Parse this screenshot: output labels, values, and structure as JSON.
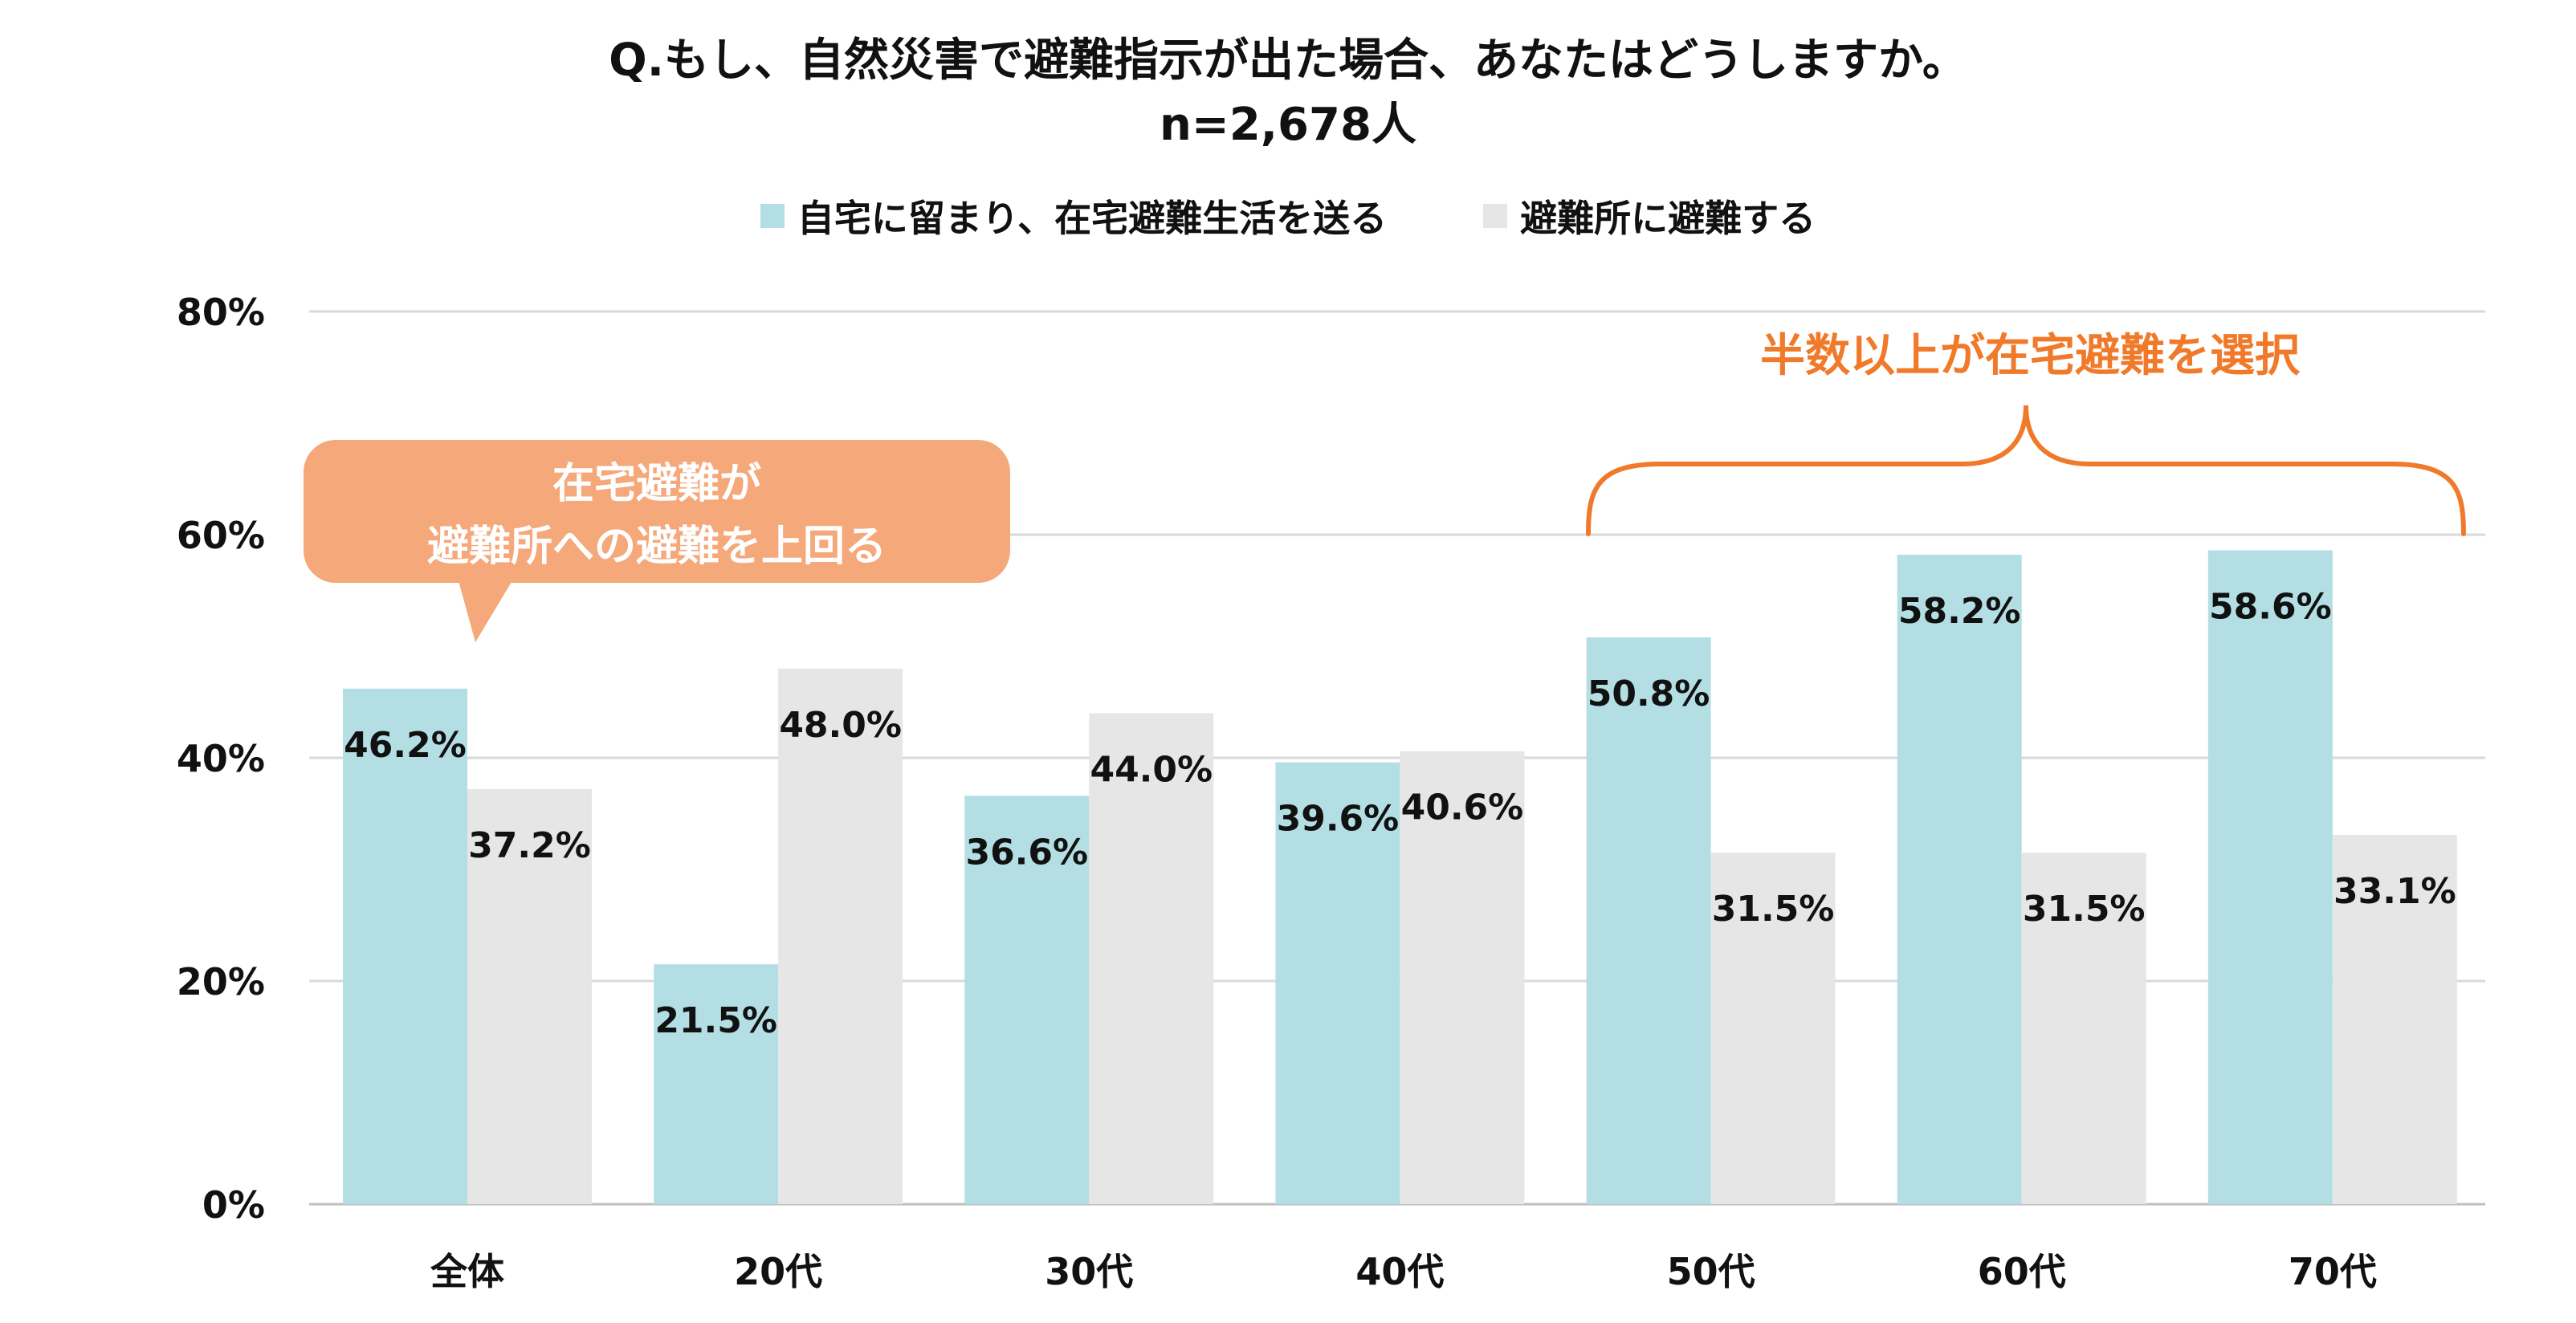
{
  "title": "Q.もし、自然災害で避難指示が出た場合、あなたはどうしますか。",
  "subtitle": "n=2,678人",
  "colors": {
    "series1": "#b3dfe4",
    "series2": "#e6e6e6",
    "accent": "#f07a2a",
    "callout": "#f5a87a",
    "grid": "#d9d9d9"
  },
  "chart_data": {
    "type": "bar",
    "categories": [
      "全体",
      "20代",
      "30代",
      "40代",
      "50代",
      "60代",
      "70代"
    ],
    "series": [
      {
        "name": "自宅に留まり、在宅避難生活を送る",
        "values": [
          46.2,
          21.5,
          36.6,
          39.6,
          50.8,
          58.2,
          58.6
        ],
        "labels": [
          "46.2%",
          "21.5%",
          "36.6%",
          "39.6%",
          "50.8%",
          "58.2%",
          "58.6%"
        ]
      },
      {
        "name": "避難所に避難する",
        "values": [
          37.2,
          48.0,
          44.0,
          40.6,
          31.5,
          31.5,
          33.1
        ],
        "labels": [
          "37.2%",
          "48.0%",
          "44.0%",
          "40.6%",
          "31.5%",
          "31.5%",
          "33.1%"
        ]
      }
    ],
    "ylim": [
      0,
      80
    ],
    "yticks": [
      0,
      20,
      40,
      60,
      80
    ],
    "ytick_labels": [
      "0%",
      "20%",
      "40%",
      "60%",
      "80%"
    ],
    "grid": true,
    "legend_position": "top-center",
    "annotations": [
      {
        "text_lines": [
          "在宅避難が",
          "避難所への避難を上回る"
        ]
      },
      {
        "text": "半数以上が在宅避難を選択"
      }
    ]
  }
}
